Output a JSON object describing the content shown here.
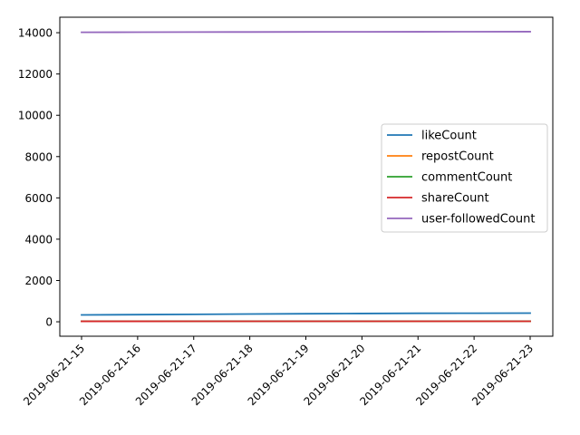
{
  "chart_data": {
    "type": "line",
    "x": [
      "2019-06-21-15",
      "2019-06-21-16",
      "2019-06-21-17",
      "2019-06-21-18",
      "2019-06-21-19",
      "2019-06-21-20",
      "2019-06-21-21",
      "2019-06-21-22",
      "2019-06-21-23"
    ],
    "series": [
      {
        "name": "likeCount",
        "color": "#1f77b4",
        "values": [
          330,
          345,
          360,
          375,
          390,
          400,
          410,
          415,
          420
        ]
      },
      {
        "name": "repostCount",
        "color": "#ff7f0e",
        "values": [
          20,
          20,
          21,
          21,
          22,
          22,
          22,
          23,
          23
        ]
      },
      {
        "name": "commentCount",
        "color": "#2ca02c",
        "values": [
          25,
          25,
          26,
          26,
          27,
          27,
          28,
          28,
          28
        ]
      },
      {
        "name": "shareCount",
        "color": "#d62728",
        "values": [
          22,
          22,
          23,
          23,
          24,
          24,
          25,
          25,
          25
        ]
      },
      {
        "name": "user-followedCount",
        "color": "#9467bd",
        "values": [
          14020,
          14025,
          14030,
          14035,
          14040,
          14042,
          14045,
          14047,
          14050
        ]
      }
    ],
    "yticks": [
      "0",
      "2000",
      "4000",
      "6000",
      "8000",
      "10000",
      "12000",
      "14000"
    ],
    "ylim": [
      -700,
      14750
    ],
    "grid": false,
    "legend_position": "center-right"
  }
}
